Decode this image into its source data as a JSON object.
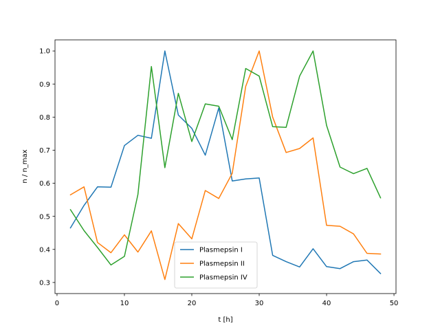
{
  "chart_data": {
    "type": "line",
    "title": "",
    "xlabel": "t [h]",
    "ylabel": "n / n_max",
    "xlim": [
      -0.3,
      50.3
    ],
    "ylim": [
      0.2665,
      1.0335
    ],
    "xticks": [
      0,
      10,
      20,
      30,
      40,
      50
    ],
    "yticks": [
      0.3,
      0.4,
      0.5,
      0.6,
      0.7,
      0.8,
      0.9,
      1.0
    ],
    "xtick_labels": [
      "0",
      "10",
      "20",
      "30",
      "40",
      "50"
    ],
    "ytick_labels": [
      "0.3",
      "0.4",
      "0.5",
      "0.6",
      "0.7",
      "0.8",
      "0.9",
      "1.0"
    ],
    "grid": false,
    "legend_position": "bottom-center",
    "x": [
      2,
      4,
      6,
      8,
      10,
      12,
      14,
      16,
      18,
      20,
      22,
      24,
      26,
      28,
      30,
      32,
      34,
      36,
      38,
      40,
      42,
      44,
      46,
      48
    ],
    "series": [
      {
        "name": "Plasmepsin I",
        "color": "#1f77b4",
        "values": [
          0.465,
          0.533,
          0.589,
          0.588,
          0.714,
          0.745,
          0.736,
          1.0,
          0.806,
          0.766,
          0.685,
          0.828,
          0.607,
          0.613,
          0.616,
          0.382,
          0.363,
          0.347,
          0.402,
          0.348,
          0.342,
          0.363,
          0.368,
          0.327
        ]
      },
      {
        "name": "Plasmepsin II",
        "color": "#ff7f0e",
        "values": [
          0.565,
          0.589,
          0.421,
          0.39,
          0.444,
          0.392,
          0.456,
          0.309,
          0.478,
          0.432,
          0.578,
          0.554,
          0.63,
          0.893,
          1.0,
          0.8,
          0.693,
          0.705,
          0.737,
          0.473,
          0.47,
          0.447,
          0.388,
          0.386
        ]
      },
      {
        "name": "Plasmepsin IV",
        "color": "#2ca02c",
        "values": [
          0.52,
          0.457,
          0.406,
          0.353,
          0.379,
          0.566,
          0.953,
          0.647,
          0.872,
          0.726,
          0.84,
          0.833,
          0.732,
          0.947,
          0.924,
          0.771,
          0.769,
          0.924,
          1.0,
          0.775,
          0.649,
          0.629,
          0.645,
          0.556
        ]
      }
    ]
  }
}
